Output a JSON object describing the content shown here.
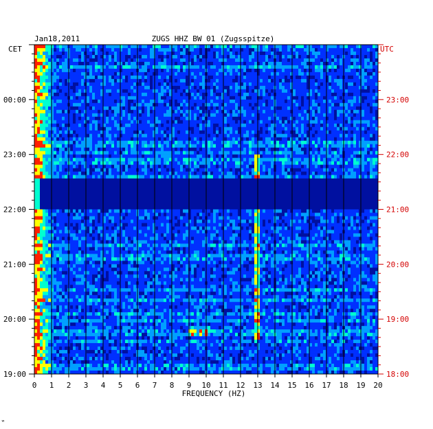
{
  "header": {
    "date": "Jan18,2011",
    "station": "ZUGS HHZ BW 01 (Zugsspitze)",
    "left_tz": "CET",
    "right_tz": "UTC"
  },
  "footer": {
    "mark": "ʷ"
  },
  "colors": {
    "background": "#0018a0",
    "gap": "#0a1a8c",
    "axis_right": "#d40000",
    "gridline": "#000000"
  },
  "chart_data": {
    "type": "heatmap",
    "title": "ZUGS HHZ BW 01 (Zugsspitze)",
    "xlabel": "FREQUENCY (HZ)",
    "ylabel": "",
    "xlim": [
      0,
      20
    ],
    "x_ticks": [
      "0",
      "1",
      "2",
      "3",
      "4",
      "5",
      "6",
      "7",
      "8",
      "9",
      "10",
      "11",
      "12",
      "13",
      "14",
      "15",
      "16",
      "17",
      "18",
      "19",
      "20"
    ],
    "y_ticks_left": [
      "19:00",
      "20:00",
      "21:00",
      "22:00",
      "23:00",
      "00:00"
    ],
    "y_ticks_right": [
      "18:00",
      "19:00",
      "20:00",
      "21:00",
      "22:00",
      "23:00"
    ],
    "y_range_utc_hours": [
      18.0,
      24.0
    ],
    "colormap": [
      "#0010a0",
      "#0030ff",
      "#00a0ff",
      "#00ffd0",
      "#ffff00",
      "#ff2000"
    ],
    "features": [
      {
        "name": "low-frequency energy",
        "freq_hz": [
          0,
          1.2
        ],
        "level": "high"
      },
      {
        "name": "spectral line",
        "freq_hz": 13.0,
        "time_utc": [
          18.6,
          22.0
        ]
      },
      {
        "name": "data gap",
        "time_utc": [
          21.0,
          21.55
        ]
      },
      {
        "name": "transient",
        "freq_hz": [
          9.0,
          10.2
        ],
        "time_utc": [
          18.7,
          18.85
        ]
      }
    ]
  }
}
